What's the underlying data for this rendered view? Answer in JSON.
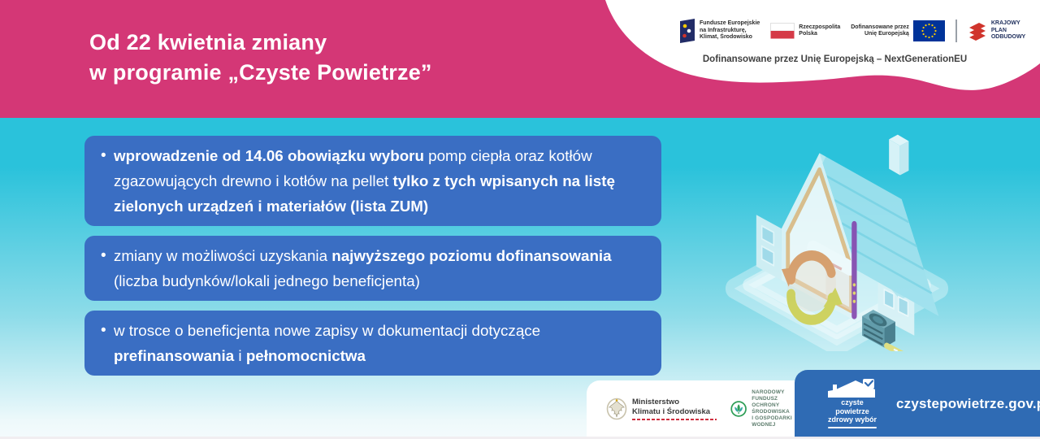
{
  "header": {
    "title_lines": [
      "Od 22 kwietnia zmiany",
      "w programie „Czyste Powietrze”"
    ],
    "subtitle": "Dofinansowane przez Unię Europejską – NextGenerationEU",
    "logo_bar": {
      "fe_line1": "Fundusze Europejskie",
      "fe_line2": "na Infrastrukturę,",
      "fe_line3": "Klimat, Środowisko",
      "pl_line1": "Rzeczpospolita",
      "pl_line2": "Polska",
      "eu_line1": "Dofinansowane przez",
      "eu_line2": "Unię Europejską",
      "kpo_line1": "KRAJOWY",
      "kpo_line2": "PLAN",
      "kpo_line3": "ODBUDOWY"
    }
  },
  "bullet_glyph": "•",
  "bullets": [
    {
      "segments": [
        {
          "text": "wprowadzenie od 14.06 obowiązku wyboru ",
          "bold": true
        },
        {
          "text": "pomp ciepła oraz kotłów zgazowujących drewno i kotłów na pellet ",
          "bold": false
        },
        {
          "text": "tylko z tych wpisanych na listę zielonych urządzeń i materiałów (lista ZUM)",
          "bold": true
        }
      ]
    },
    {
      "segments": [
        {
          "text": "zmiany w możliwości uzyskania ",
          "bold": false
        },
        {
          "text": "najwyższego poziomu dofinansowania",
          "bold": true
        },
        {
          "text": " (liczba budynków/lokali jednego beneficjenta)",
          "bold": false
        }
      ]
    },
    {
      "segments": [
        {
          "text": "w trosce o beneficjenta nowe zapisy w dokumentacji dotyczące ",
          "bold": false
        },
        {
          "text": "prefinansowania",
          "bold": true
        },
        {
          "text": " i ",
          "bold": false
        },
        {
          "text": "pełnomocnictwa",
          "bold": true
        }
      ]
    }
  ],
  "footer": {
    "ministry_line1": "Ministerstwo",
    "ministry_line2": "Klimatu i Środowiska",
    "nfos_line1": "NARODOWY FUNDUSZ",
    "nfos_line2": "OCHRONY ŚRODOWISKA",
    "nfos_line3": "I GOSPODARKI WODNEJ",
    "cp_line1": "czyste powietrze",
    "cp_line2": "zdrowy wybór",
    "website": "czystepowietrze.gov.pl"
  },
  "colors": {
    "pink": "#d43776",
    "cyan": "#2bc3db",
    "bullet_blue": "#3a6ec3",
    "footer_blue": "#2f6bb4",
    "eu_flag_blue": "#003399",
    "eu_star_yellow": "#ffcc00",
    "poland_red": "#d53a47",
    "kpo_red": "#d0342c"
  }
}
